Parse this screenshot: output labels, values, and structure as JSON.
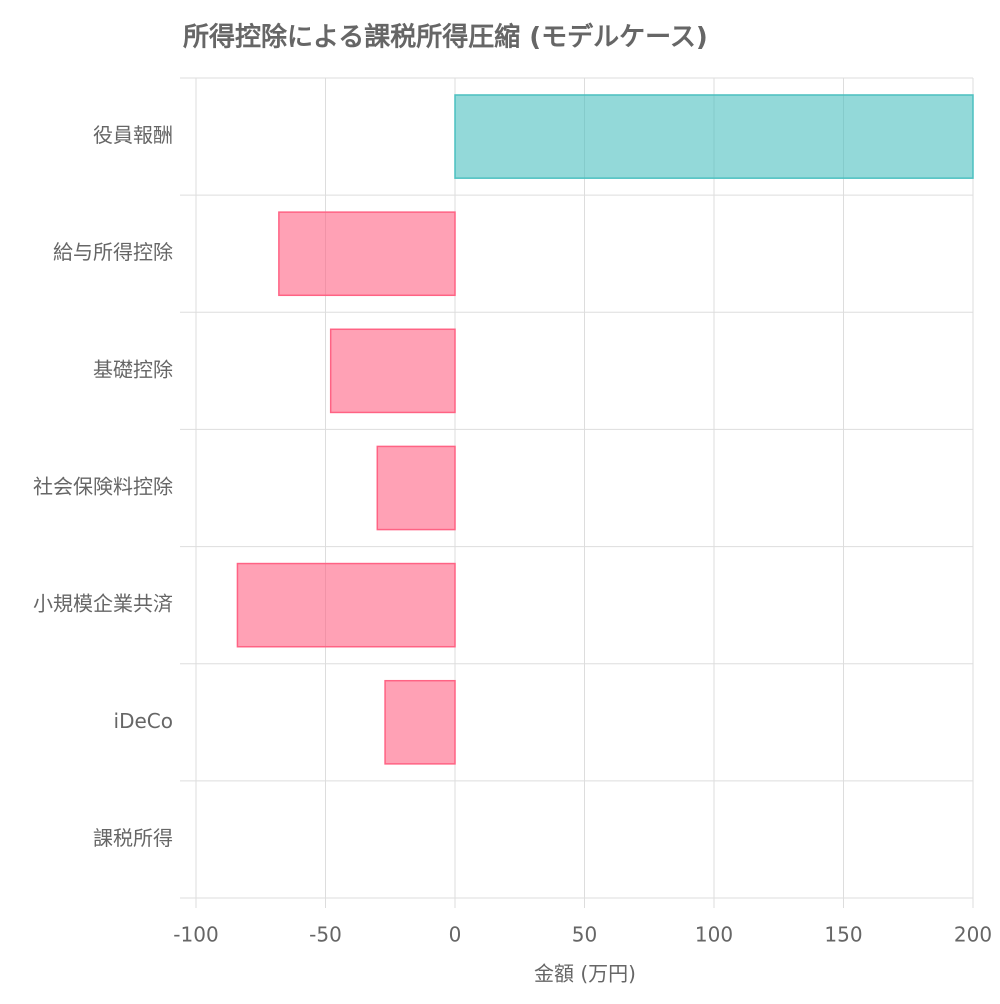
{
  "chart_data": {
    "type": "hbar",
    "title": "所得控除による課税所得圧縮 (モデルケース)",
    "x_label": "金額 (万円)",
    "categories": [
      "役員報酬",
      "給与所得控除",
      "基礎控除",
      "社会保険料控除",
      "小規模企業共済",
      "iDeCo",
      "課税所得"
    ],
    "values": [
      200,
      -68,
      -48,
      -30,
      -84,
      -27,
      null
    ],
    "colors": [
      "#4bc0c0",
      "#ff6384",
      "#ff6384",
      "#ff6384",
      "#ff6384",
      "#ff6384",
      null
    ],
    "xlim": [
      -100,
      200
    ],
    "xticks": [
      -100,
      -50,
      0,
      50,
      100,
      150,
      200
    ],
    "grid": true
  }
}
